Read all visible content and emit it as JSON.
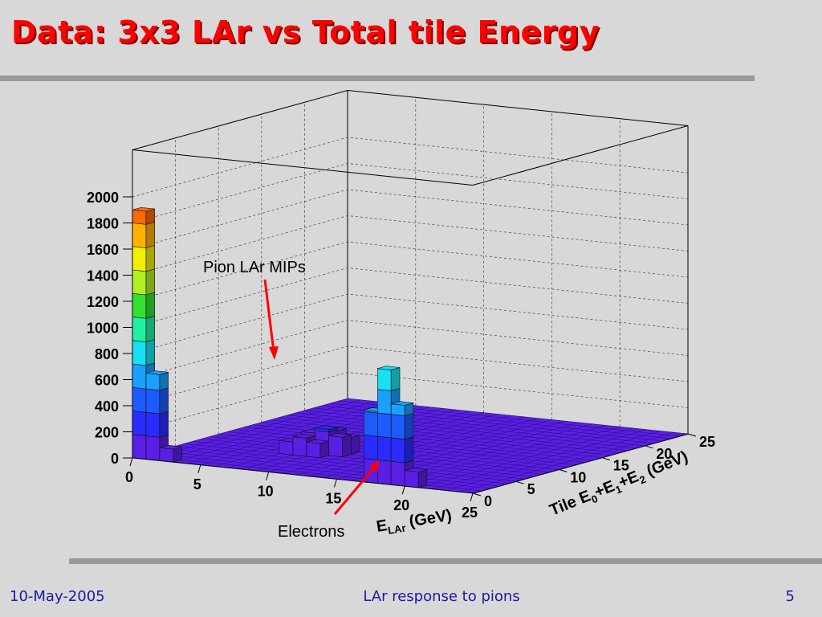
{
  "slide": {
    "title": "Data: 3x3 LAr vs Total tile Energy",
    "footer_date": "10-May-2005",
    "footer_center": "LAr response to pions",
    "page_number": "5"
  },
  "colors": {
    "title": "#ff0000",
    "footer": "#1a1aa8",
    "arrow": "#ff0000",
    "rule": "#9a9a9a"
  },
  "chart_data": {
    "type": "lego",
    "xlabel": "E_LAr (GeV)",
    "ylabel": "Tile E0+E1+E2 (GeV)",
    "xlim": [
      0,
      25
    ],
    "ylim": [
      0,
      25
    ],
    "zlim": [
      0,
      2000
    ],
    "x_ticks": [
      "0",
      "5",
      "10",
      "15",
      "20",
      "25"
    ],
    "y_ticks": [
      "0",
      "5",
      "10",
      "15",
      "20",
      "25"
    ],
    "z_ticks": [
      "0",
      "200",
      "400",
      "600",
      "800",
      "1000",
      "1200",
      "1400",
      "1600",
      "1800",
      "2000"
    ],
    "bins_per_axis": 25,
    "peaks": [
      {
        "x_bin": 0,
        "y_bin": 0,
        "count": 1900
      },
      {
        "x_bin": 1,
        "y_bin": 0,
        "count": 660
      },
      {
        "x_bin": 2,
        "y_bin": 0,
        "count": 100
      },
      {
        "x_bin": 17,
        "y_bin": 0,
        "count": 550
      },
      {
        "x_bin": 18,
        "y_bin": 0,
        "count": 880
      },
      {
        "x_bin": 19,
        "y_bin": 0,
        "count": 620
      },
      {
        "x_bin": 20,
        "y_bin": 0,
        "count": 120
      },
      {
        "x_bin": 7,
        "y_bin": 6,
        "count": 100
      },
      {
        "x_bin": 8,
        "y_bin": 6,
        "count": 140
      },
      {
        "x_bin": 9,
        "y_bin": 6,
        "count": 110
      },
      {
        "x_bin": 9,
        "y_bin": 7,
        "count": 200
      },
      {
        "x_bin": 10,
        "y_bin": 7,
        "count": 150
      },
      {
        "x_bin": 8,
        "y_bin": 7,
        "count": 160
      },
      {
        "x_bin": 9,
        "y_bin": 8,
        "count": 170
      },
      {
        "x_bin": 10,
        "y_bin": 8,
        "count": 130
      }
    ],
    "annotations": [
      {
        "text": "Pion LAr MIPs"
      },
      {
        "text": "Electrons"
      }
    ]
  }
}
